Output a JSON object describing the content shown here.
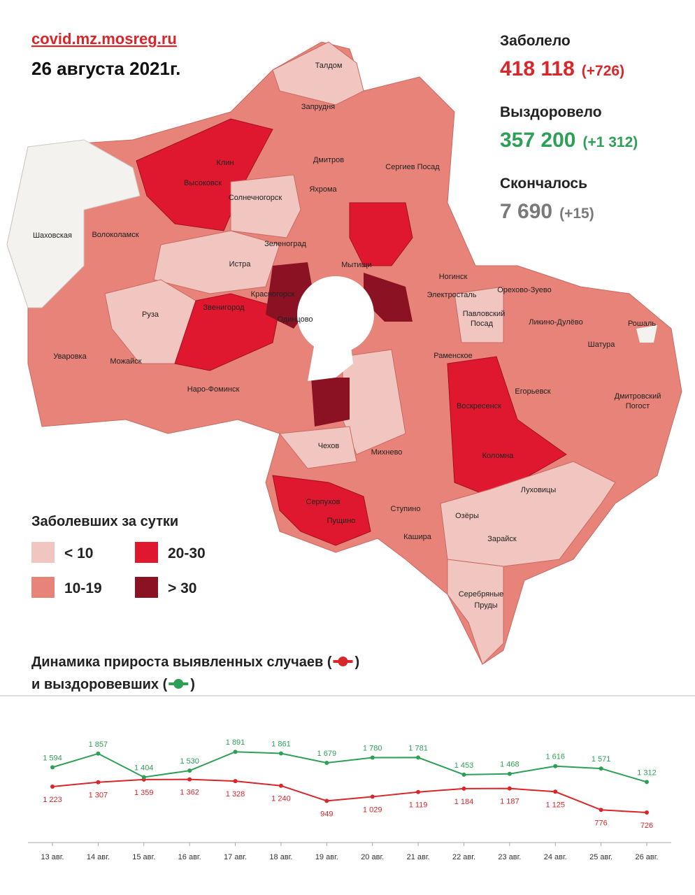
{
  "header": {
    "site": "covid.mz.mosreg.ru",
    "date": "26 августа 2021г."
  },
  "stats": [
    {
      "label": "Заболело",
      "value": "418 118",
      "delta": "(+726)"
    },
    {
      "label": "Выздоровело",
      "value": "357 200",
      "delta": "(+1 312)"
    },
    {
      "label": "Скончалось",
      "value": "7 690",
      "delta": "(+15)"
    }
  ],
  "map": {
    "labels": [
      "Талдом",
      "Запрудня",
      "Клин",
      "Высоковск",
      "Дмитров",
      "Сергиев Посад",
      "Яхрома",
      "Солнечногорск",
      "Шаховская",
      "Волоколамск",
      "Зеленоград",
      "Истра",
      "Мытищи",
      "Красногорск",
      "Ногинск",
      "Орехово-Зуево",
      "Электросталь",
      "Павловский",
      "Посад",
      "Звенигород",
      "Одинцово",
      "Руза",
      "Ликино-Дулёво",
      "Рошаль",
      "Шатура",
      "Уваровка",
      "Можайск",
      "Раменское",
      "Наро-Фоминск",
      "Воскресенск",
      "Егорьевск",
      "Дмитровский",
      "Погост",
      "Чехов",
      "Михнево",
      "Коломна",
      "Луховицы",
      "Серпухов",
      "Пущино",
      "Ступино",
      "Озёры",
      "Кашира",
      "Зарайск",
      "Серебряные",
      "Пруды"
    ]
  },
  "legend": {
    "title": "Заболевших за сутки",
    "items": [
      {
        "label": "< 10",
        "color": "#f2c6c0"
      },
      {
        "label": "20-30",
        "color": "#e0182f"
      },
      {
        "label": "10-19",
        "color": "#e8837a"
      },
      {
        "label": "> 30",
        "color": "#8a1222"
      }
    ]
  },
  "chart_data": {
    "type": "line",
    "title": [
      "Динамика прироста выявленных случаев (",
      "и выздоровевших ("
    ],
    "paren": ")",
    "categories": [
      "13 авг.",
      "14 авг.",
      "15 авг.",
      "16 авг.",
      "17 авг.",
      "18 авг.",
      "19 авг.",
      "20 авг.",
      "21 авг.",
      "22 авг.",
      "23 авг.",
      "24 авг.",
      "25 авг.",
      "26 авг."
    ],
    "ylim": [
      350,
      2230
    ],
    "series": [
      {
        "color": "#d8262a",
        "values": [
          1223,
          1307,
          1359,
          1362,
          1328,
          1240,
          949,
          1029,
          1119,
          1184,
          1187,
          1125,
          776,
          726
        ],
        "value_labels": [
          "1 223",
          "1 307",
          "1 359",
          "1 362",
          "1 328",
          "1 240",
          "949",
          "1 029",
          "1 119",
          "1 184",
          "1 187",
          "1 125",
          "776",
          "726"
        ]
      },
      {
        "color": "#2ea055",
        "values": [
          1594,
          1857,
          1404,
          1530,
          1891,
          1861,
          1679,
          1780,
          1781,
          1453,
          1468,
          1616,
          1571,
          1312
        ],
        "value_labels": [
          "1 594",
          "1 857",
          "1 404",
          "1 530",
          "1 891",
          "1 861",
          "1 679",
          "1 780",
          "1 781",
          "1 453",
          "1 468",
          "1 616",
          "1 571",
          "1 312"
        ]
      }
    ]
  }
}
